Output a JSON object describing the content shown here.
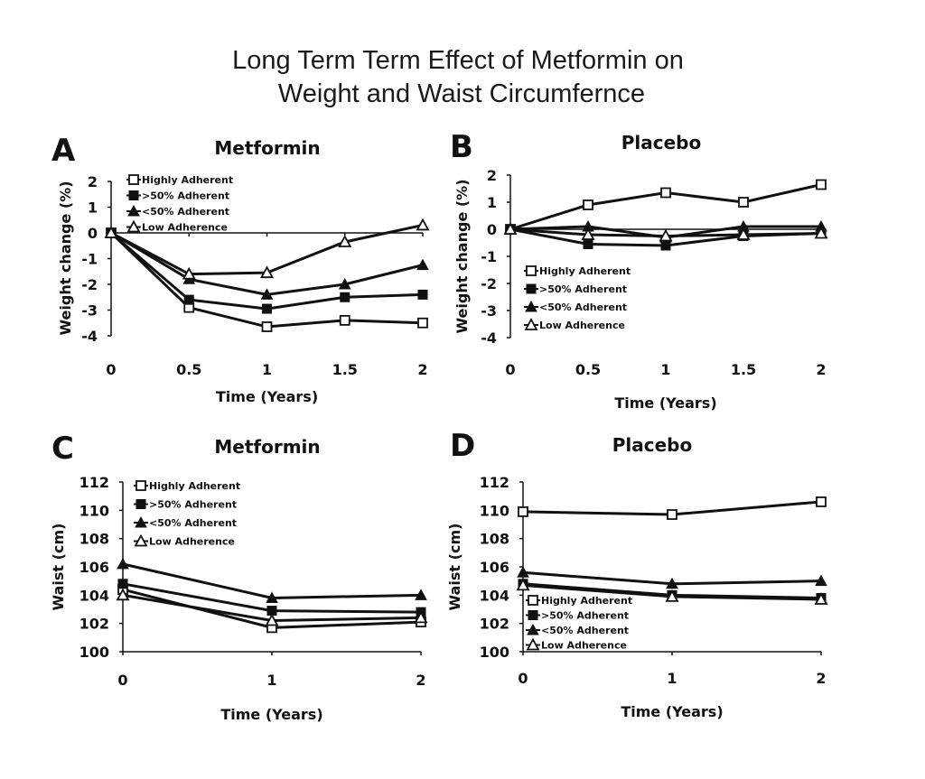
{
  "title_line1": "Long Term Term Effect of Metformin on",
  "title_line2": "Weight and Waist Circumfernce",
  "chart_data": [
    {
      "panel": "A",
      "type": "line",
      "title": "Metformin",
      "xlabel": "Time (Years)",
      "ylabel": "Weight change (%)",
      "x": [
        0,
        0.5,
        1,
        1.5,
        2
      ],
      "xticks": [
        "0",
        "0.5",
        "1",
        "1.5",
        "2"
      ],
      "ylim": [
        -4,
        2
      ],
      "yticks": [
        "2",
        "1",
        "0",
        "-1",
        "-2",
        "-3",
        "-4"
      ],
      "legend_position": "top-left",
      "series": [
        {
          "name": "Highly Adherent",
          "marker": "open-square",
          "values": [
            0,
            -2.9,
            -3.65,
            -3.4,
            -3.5
          ]
        },
        {
          "name": ">50% Adherent",
          "marker": "filled-square",
          "values": [
            0,
            -2.6,
            -2.95,
            -2.5,
            -2.4
          ]
        },
        {
          "name": "<50% Adherent",
          "marker": "filled-triangle",
          "values": [
            0,
            -1.8,
            -2.4,
            -2.0,
            -1.25
          ]
        },
        {
          "name": "Low Adherence",
          "marker": "open-triangle",
          "values": [
            0,
            -1.6,
            -1.55,
            -0.35,
            0.3
          ]
        }
      ]
    },
    {
      "panel": "B",
      "type": "line",
      "title": "Placebo",
      "xlabel": "Time (Years)",
      "ylabel": "Weight change (%)",
      "x": [
        0,
        0.5,
        1,
        1.5,
        2
      ],
      "xticks": [
        "0",
        "0.5",
        "1",
        "1.5",
        "2"
      ],
      "ylim": [
        -4,
        2
      ],
      "yticks": [
        "2",
        "1",
        "0",
        "-1",
        "-2",
        "-3",
        "-4"
      ],
      "legend_position": "bottom-left",
      "series": [
        {
          "name": "Highly Adherent",
          "marker": "open-square",
          "values": [
            0,
            0.9,
            1.35,
            1.0,
            1.65
          ]
        },
        {
          "name": ">50% Adherent",
          "marker": "filled-square",
          "values": [
            0,
            -0.55,
            -0.6,
            -0.25,
            -0.15
          ]
        },
        {
          "name": "<50% Adherent",
          "marker": "filled-triangle",
          "values": [
            0,
            0.1,
            -0.3,
            0.1,
            0.1
          ]
        },
        {
          "name": "Low Adherence",
          "marker": "open-triangle",
          "values": [
            0,
            -0.2,
            -0.25,
            -0.2,
            -0.15
          ]
        }
      ]
    },
    {
      "panel": "C",
      "type": "line",
      "title": "Metformin",
      "xlabel": "Time (Years)",
      "ylabel": "Waist (cm)",
      "x": [
        0,
        1,
        2
      ],
      "xticks": [
        "0",
        "1",
        "2"
      ],
      "ylim": [
        100,
        112
      ],
      "yticks": [
        "112",
        "110",
        "108",
        "106",
        "104",
        "102",
        "100"
      ],
      "legend_position": "top-left",
      "series": [
        {
          "name": "Highly Adherent",
          "marker": "open-square",
          "values": [
            104.4,
            101.7,
            102.1
          ]
        },
        {
          "name": ">50% Adherent",
          "marker": "filled-square",
          "values": [
            104.8,
            102.9,
            102.8
          ]
        },
        {
          "name": "<50% Adherent",
          "marker": "filled-triangle",
          "values": [
            106.2,
            103.8,
            104.0
          ]
        },
        {
          "name": "Low Adherence",
          "marker": "open-triangle",
          "values": [
            104.0,
            102.2,
            102.4
          ]
        }
      ]
    },
    {
      "panel": "D",
      "type": "line",
      "title": "Placebo",
      "xlabel": "Time (Years)",
      "ylabel": "Waist (cm)",
      "x": [
        0,
        1,
        2
      ],
      "xticks": [
        "0",
        "1",
        "2"
      ],
      "ylim": [
        100,
        112
      ],
      "yticks": [
        "112",
        "110",
        "108",
        "106",
        "104",
        "102",
        "100"
      ],
      "legend_position": "bottom-left",
      "series": [
        {
          "name": "Highly Adherent",
          "marker": "open-square",
          "values": [
            109.9,
            109.7,
            110.6
          ]
        },
        {
          "name": ">50% Adherent",
          "marker": "filled-square",
          "values": [
            104.8,
            104.0,
            103.8
          ]
        },
        {
          "name": "<50% Adherent",
          "marker": "filled-triangle",
          "values": [
            105.6,
            104.8,
            105.0
          ]
        },
        {
          "name": "Low Adherence",
          "marker": "open-triangle",
          "values": [
            104.7,
            103.9,
            103.7
          ]
        }
      ]
    }
  ]
}
